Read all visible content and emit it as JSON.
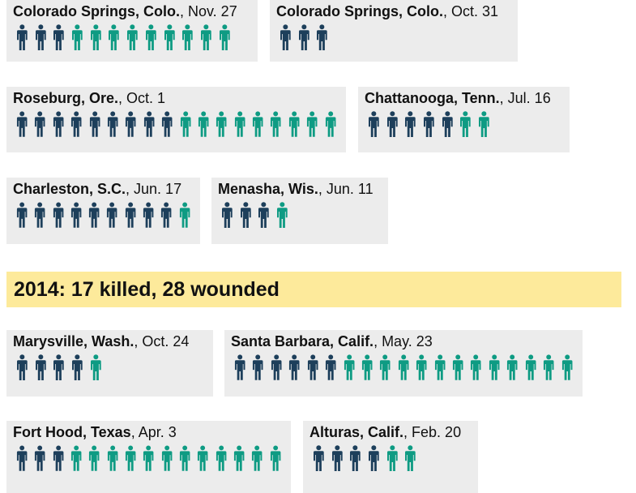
{
  "colors": {
    "killed": "#1d3f5b",
    "wounded": "#0e9b83",
    "card_bg": "#ececec",
    "banner_bg": "#fdea9b"
  },
  "icon_legend": {
    "killed": "person-icon-dark",
    "wounded": "person-icon-teal"
  },
  "year_2014": {
    "label": "2014: 17 killed, 28 wounded"
  },
  "chart_data": {
    "type": "pictograph",
    "incidents": [
      {
        "place": "Colorado Springs, Colo.",
        "date": ", Nov. 27",
        "killed": 3,
        "wounded": 9
      },
      {
        "place": "Colorado Springs, Colo.",
        "date": ", Oct. 31",
        "killed": 3,
        "wounded": 0
      },
      {
        "place": "Roseburg, Ore.",
        "date": ", Oct. 1",
        "killed": 9,
        "wounded": 9
      },
      {
        "place": "Chattanooga, Tenn.",
        "date": ", Jul. 16",
        "killed": 5,
        "wounded": 2
      },
      {
        "place": "Charleston, S.C.",
        "date": ", Jun. 17",
        "killed": 9,
        "wounded": 1
      },
      {
        "place": "Menasha, Wis.",
        "date": ", Jun. 11",
        "killed": 3,
        "wounded": 1
      },
      {
        "place": "Marysville, Wash.",
        "date": ", Oct. 24",
        "killed": 4,
        "wounded": 1
      },
      {
        "place": "Santa Barbara, Calif.",
        "date": ", May. 23",
        "killed": 6,
        "wounded": 13
      },
      {
        "place": "Fort Hood, Texas",
        "date": ", Apr. 3",
        "killed": 3,
        "wounded": 12
      },
      {
        "place": "Alturas, Calif.",
        "date": ", Feb. 20",
        "killed": 4,
        "wounded": 2
      }
    ]
  }
}
